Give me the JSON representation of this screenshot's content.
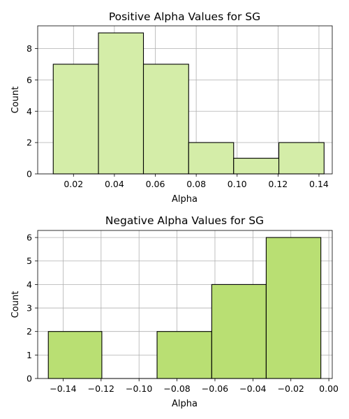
{
  "chart_data": [
    {
      "type": "bar",
      "subtype": "histogram",
      "title": "Positive Alpha Values for SG",
      "xlabel": "Alpha",
      "ylabel": "Count",
      "xlim": [
        0.0025,
        0.1465
      ],
      "ylim": [
        0,
        9.45
      ],
      "x_ticks": [
        0.02,
        0.04,
        0.06,
        0.08,
        0.1,
        0.12,
        0.14
      ],
      "x_tick_labels": [
        "0.02",
        "0.04",
        "0.06",
        "0.08",
        "0.10",
        "0.12",
        "0.14"
      ],
      "y_ticks": [
        0,
        2,
        4,
        6,
        8
      ],
      "y_tick_labels": [
        "0",
        "2",
        "4",
        "6",
        "8"
      ],
      "bin_edges": [
        0.0101,
        0.0322,
        0.0542,
        0.0763,
        0.0983,
        0.1204,
        0.1425
      ],
      "values": [
        7,
        9,
        7,
        2,
        1,
        2
      ],
      "grid": true,
      "bar_color": "#d4eda8",
      "edge_color": "#000000"
    },
    {
      "type": "bar",
      "subtype": "histogram",
      "title": "Negative Alpha Values for SG",
      "xlabel": "Alpha",
      "ylabel": "Count",
      "xlim": [
        -0.1534,
        0.0018
      ],
      "ylim": [
        0,
        6.3
      ],
      "x_ticks": [
        -0.14,
        -0.12,
        -0.1,
        -0.08,
        -0.06,
        -0.04,
        -0.02,
        0.0
      ],
      "x_tick_labels": [
        "−0.14",
        "−0.12",
        "−0.10",
        "−0.08",
        "−0.06",
        "−0.04",
        "−0.02",
        "0.00"
      ],
      "y_ticks": [
        0,
        1,
        2,
        3,
        4,
        5,
        6
      ],
      "y_tick_labels": [
        "0",
        "1",
        "2",
        "3",
        "4",
        "5",
        "6"
      ],
      "bin_edges": [
        -0.1478,
        -0.1196,
        -0.0905,
        -0.0617,
        -0.033,
        -0.0042
      ],
      "values": [
        2,
        0,
        2,
        4,
        6
      ],
      "grid": true,
      "bar_color": "#b9df73",
      "edge_color": "#000000"
    }
  ]
}
